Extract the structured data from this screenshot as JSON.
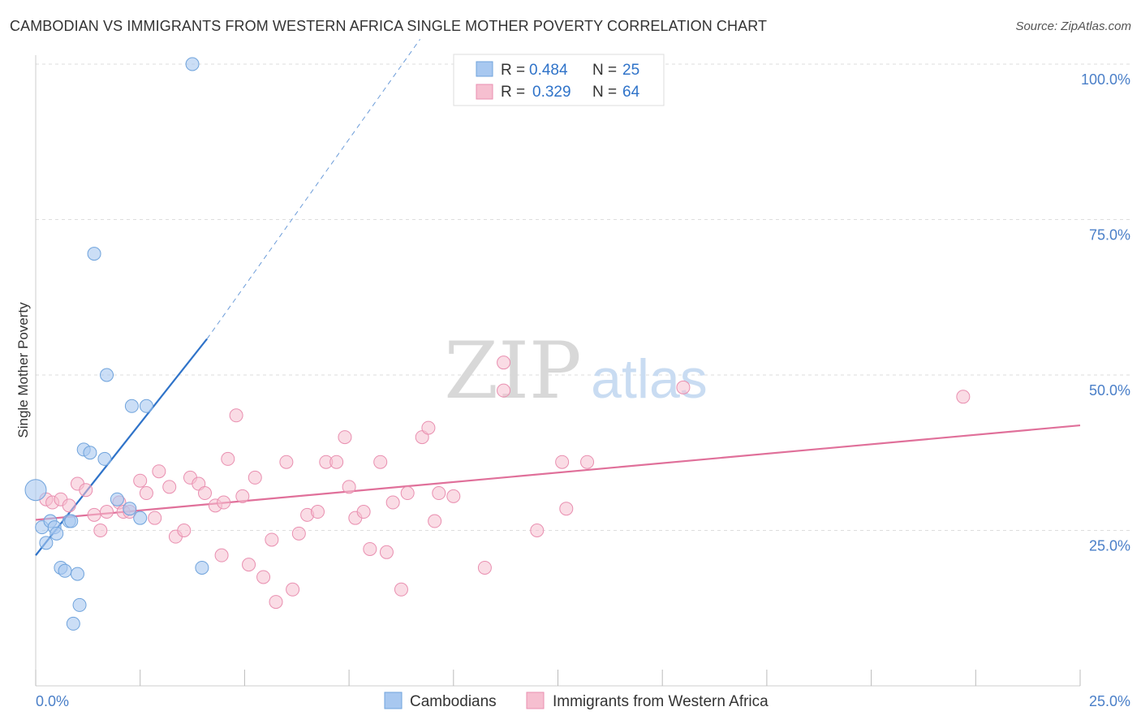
{
  "title": "CAMBODIAN VS IMMIGRANTS FROM WESTERN AFRICA SINGLE MOTHER POVERTY CORRELATION CHART",
  "source": "Source: ZipAtlas.com",
  "watermark": {
    "zip": "ZIP",
    "atlas": "atlas"
  },
  "colors": {
    "blue_fill": "#a8c8f0",
    "blue_stroke": "#6fa3dc",
    "blue_line": "#2f73c9",
    "pink_fill": "#f6bfd0",
    "pink_stroke": "#e98fb0",
    "pink_line": "#e0709a",
    "axis_label": "#4a7fc8",
    "grid": "#dddddd"
  },
  "legend": {
    "rows": [
      {
        "r_label": "R =",
        "r_value": "0.484",
        "n_label": "N =",
        "n_value": "25"
      },
      {
        "r_label": "R =",
        "r_value": "0.329",
        "n_label": "N =",
        "n_value": "64"
      }
    ]
  },
  "bottom_legend": {
    "series1": "Cambodians",
    "series2": "Immigrants from Western Africa"
  },
  "chart_data": {
    "type": "scatter",
    "title": "CAMBODIAN VS IMMIGRANTS FROM WESTERN AFRICA SINGLE MOTHER POVERTY CORRELATION CHART",
    "xlabel": "",
    "ylabel": "Single Mother Poverty",
    "xlim": [
      0,
      25
    ],
    "ylim": [
      0,
      100
    ],
    "x_tick_labels": [
      "0.0%",
      "25.0%"
    ],
    "y_ticks": [
      25,
      50,
      75,
      100
    ],
    "y_tick_labels": [
      "25.0%",
      "50.0%",
      "75.0%",
      "100.0%"
    ],
    "grid": true,
    "series": [
      {
        "name": "Cambodians",
        "R": 0.484,
        "N": 25,
        "points": [
          [
            0.0,
            31.5
          ],
          [
            0.15,
            25.5
          ],
          [
            0.25,
            23.0
          ],
          [
            0.35,
            26.5
          ],
          [
            0.45,
            25.5
          ],
          [
            0.5,
            24.5
          ],
          [
            0.6,
            19.0
          ],
          [
            0.7,
            18.5
          ],
          [
            0.8,
            26.5
          ],
          [
            0.85,
            26.5
          ],
          [
            0.9,
            10.0
          ],
          [
            1.0,
            18.0
          ],
          [
            1.05,
            13.0
          ],
          [
            1.15,
            38.0
          ],
          [
            1.3,
            37.5
          ],
          [
            1.4,
            69.5
          ],
          [
            1.65,
            36.5
          ],
          [
            1.7,
            50.0
          ],
          [
            1.95,
            30.0
          ],
          [
            2.25,
            28.5
          ],
          [
            2.3,
            45.0
          ],
          [
            2.5,
            27.0
          ],
          [
            2.65,
            45.0
          ],
          [
            3.75,
            100.0
          ],
          [
            3.98,
            19.0
          ]
        ],
        "trend": {
          "x_start": 0.0,
          "y_start": 21.0,
          "x_end": 4.1,
          "y_end": 55.8,
          "dashed_x_end": 9.2,
          "dashed_y_end": 104.0
        }
      },
      {
        "name": "Immigrants from Western Africa",
        "R": 0.329,
        "N": 64,
        "points": [
          [
            0.25,
            30.0
          ],
          [
            0.4,
            29.5
          ],
          [
            0.6,
            30.0
          ],
          [
            0.8,
            29.0
          ],
          [
            1.0,
            32.5
          ],
          [
            1.2,
            31.5
          ],
          [
            1.4,
            27.5
          ],
          [
            1.55,
            25.0
          ],
          [
            1.7,
            28.0
          ],
          [
            2.0,
            29.5
          ],
          [
            2.1,
            28.0
          ],
          [
            2.25,
            28.0
          ],
          [
            2.5,
            33.0
          ],
          [
            2.65,
            31.0
          ],
          [
            2.85,
            27.0
          ],
          [
            2.95,
            34.5
          ],
          [
            3.2,
            32.0
          ],
          [
            3.35,
            24.0
          ],
          [
            3.55,
            25.0
          ],
          [
            3.7,
            33.5
          ],
          [
            3.9,
            32.5
          ],
          [
            4.05,
            31.0
          ],
          [
            4.3,
            29.0
          ],
          [
            4.45,
            21.0
          ],
          [
            4.6,
            36.5
          ],
          [
            4.8,
            43.5
          ],
          [
            4.95,
            30.5
          ],
          [
            5.1,
            19.5
          ],
          [
            5.25,
            33.5
          ],
          [
            5.45,
            17.5
          ],
          [
            5.65,
            23.5
          ],
          [
            5.75,
            13.5
          ],
          [
            6.0,
            36.0
          ],
          [
            6.15,
            15.5
          ],
          [
            6.3,
            24.5
          ],
          [
            6.5,
            27.5
          ],
          [
            6.75,
            28.0
          ],
          [
            6.95,
            36.0
          ],
          [
            7.2,
            36.0
          ],
          [
            7.4,
            40.0
          ],
          [
            7.5,
            32.0
          ],
          [
            7.65,
            27.0
          ],
          [
            7.85,
            28.0
          ],
          [
            8.0,
            22.0
          ],
          [
            8.25,
            36.0
          ],
          [
            8.4,
            21.5
          ],
          [
            8.55,
            29.5
          ],
          [
            8.75,
            15.5
          ],
          [
            8.9,
            31.0
          ],
          [
            9.25,
            40.0
          ],
          [
            9.4,
            41.5
          ],
          [
            9.55,
            26.5
          ],
          [
            9.65,
            31.0
          ],
          [
            10.0,
            30.5
          ],
          [
            10.75,
            19.0
          ],
          [
            11.2,
            52.0
          ],
          [
            11.2,
            47.5
          ],
          [
            12.0,
            25.0
          ],
          [
            12.6,
            36.0
          ],
          [
            12.7,
            28.5
          ],
          [
            13.2,
            36.0
          ],
          [
            15.5,
            48.0
          ],
          [
            22.2,
            46.5
          ],
          [
            4.5,
            29.5
          ]
        ],
        "trend": {
          "x_start": 0.0,
          "y_start": 26.7,
          "x_end": 25.0,
          "y_end": 41.9
        }
      }
    ]
  }
}
